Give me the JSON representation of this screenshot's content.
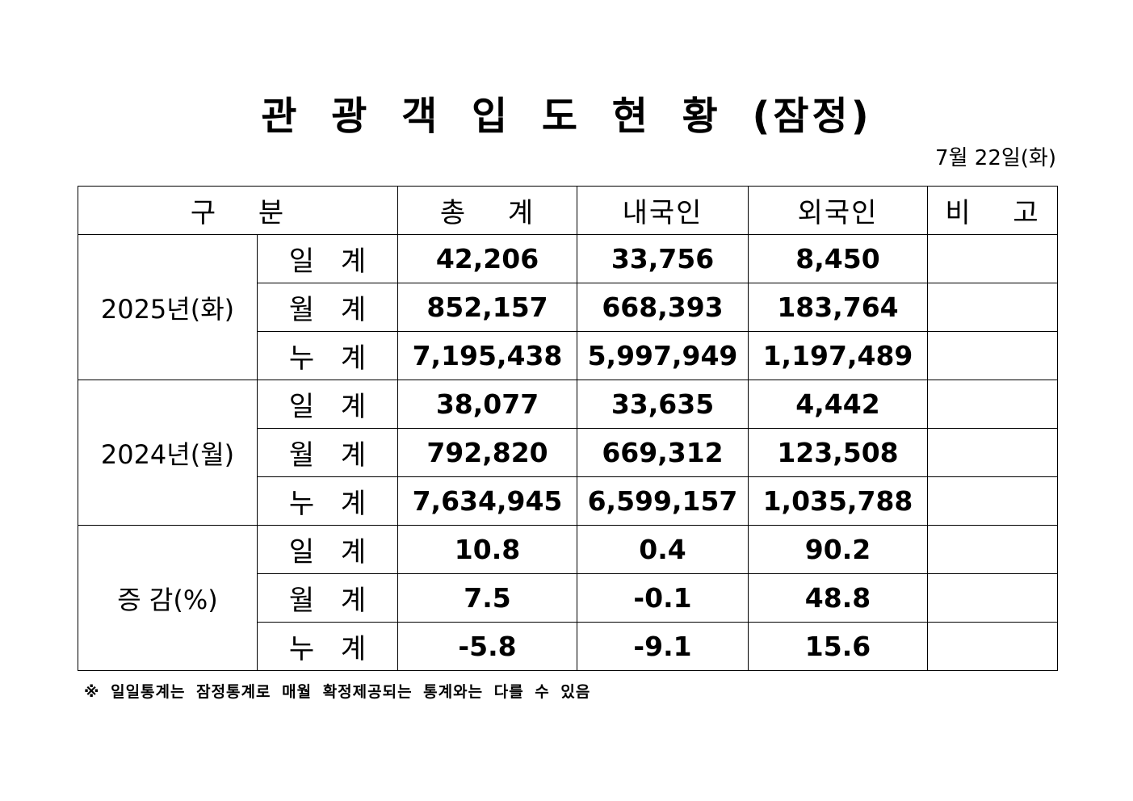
{
  "title": "관 광 객 입 도 현 황 (잠정)",
  "date": "7월  22일(화)",
  "table": {
    "headers": [
      "구  분",
      "총  계",
      "내국인",
      "외국인",
      "비  고"
    ],
    "groups": [
      {
        "label": "2025년(화)",
        "rows": [
          {
            "sub": "일 계",
            "total": "42,206",
            "domestic": "33,756",
            "foreign": "8,450",
            "note": ""
          },
          {
            "sub": "월 계",
            "total": "852,157",
            "domestic": "668,393",
            "foreign": "183,764",
            "note": ""
          },
          {
            "sub": "누 계",
            "total": "7,195,438",
            "domestic": "5,997,949",
            "foreign": "1,197,489",
            "note": ""
          }
        ]
      },
      {
        "label": "2024년(월)",
        "rows": [
          {
            "sub": "일 계",
            "total": "38,077",
            "domestic": "33,635",
            "foreign": "4,442",
            "note": ""
          },
          {
            "sub": "월 계",
            "total": "792,820",
            "domestic": "669,312",
            "foreign": "123,508",
            "note": ""
          },
          {
            "sub": "누 계",
            "total": "7,634,945",
            "domestic": "6,599,157",
            "foreign": "1,035,788",
            "note": ""
          }
        ]
      },
      {
        "label": "증  감(%)",
        "rows": [
          {
            "sub": "일 계",
            "total": "10.8",
            "domestic": "0.4",
            "foreign": "90.2",
            "note": ""
          },
          {
            "sub": "월 계",
            "total": "7.5",
            "domestic": "-0.1",
            "foreign": "48.8",
            "note": ""
          },
          {
            "sub": "누 계",
            "total": "-5.8",
            "domestic": "-9.1",
            "foreign": "15.6",
            "note": ""
          }
        ]
      }
    ]
  },
  "footnote": "※ 일일통계는 잠정통계로 매월 확정제공되는 통계와는 다를 수 있음"
}
